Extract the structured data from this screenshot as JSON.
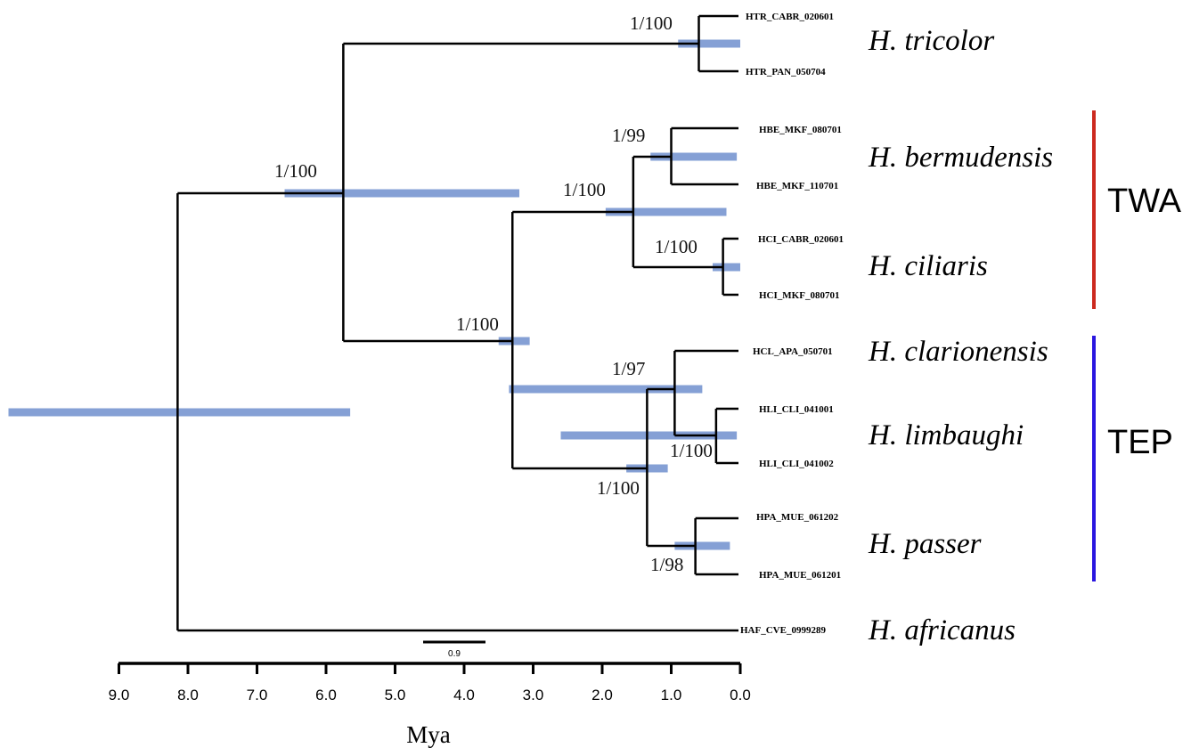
{
  "tips": [
    {
      "id": "t_htr1",
      "label": "HTR_CABR_020601"
    },
    {
      "id": "t_htr2",
      "label": "HTR_PAN_050704"
    },
    {
      "id": "t_hbe1",
      "label": "HBE_MKF_080701"
    },
    {
      "id": "t_hbe2",
      "label": "HBE_MKF_110701"
    },
    {
      "id": "t_hci1",
      "label": "HCI_CABR_020601"
    },
    {
      "id": "t_hci2",
      "label": "HCI_MKF_080701"
    },
    {
      "id": "t_hcl1",
      "label": "HCL_APA_050701"
    },
    {
      "id": "t_hli1",
      "label": "HLI_CLI_041001"
    },
    {
      "id": "t_hli2",
      "label": "HLI_CLI_041002"
    },
    {
      "id": "t_hpa1",
      "label": "HPA_MUE_061202"
    },
    {
      "id": "t_hpa2",
      "label": "HPA_MUE_061201"
    },
    {
      "id": "t_haf1",
      "label": "HAF_CVE_0999289"
    }
  ],
  "species": [
    {
      "id": "sp_tricolor",
      "label": "H. tricolor"
    },
    {
      "id": "sp_bermudensis",
      "label": "H. bermudensis"
    },
    {
      "id": "sp_ciliaris",
      "label": "H. ciliaris"
    },
    {
      "id": "sp_clarionensis",
      "label": "H. clarionensis"
    },
    {
      "id": "sp_limbaughi",
      "label": "H. limbaughi"
    },
    {
      "id": "sp_passer",
      "label": "H. passer"
    },
    {
      "id": "sp_africanus",
      "label": "H. africanus"
    }
  ],
  "nodes": [
    {
      "id": "n_root",
      "age": 8.15,
      "hpd": [
        10.6,
        5.65
      ],
      "support": ""
    },
    {
      "id": "n_trop",
      "age": 5.75,
      "hpd": [
        6.6,
        3.2
      ],
      "support": "1/100"
    },
    {
      "id": "n_tri",
      "age": 0.6,
      "hpd": [
        0.9,
        0.0
      ],
      "support": "1/100"
    },
    {
      "id": "n_atp",
      "age": 3.3,
      "hpd": [
        3.5,
        3.05
      ],
      "support": "1/100"
    },
    {
      "id": "n_twa",
      "age": 1.55,
      "hpd": [
        1.95,
        0.2
      ],
      "support": "1/100"
    },
    {
      "id": "n_ber",
      "age": 1.0,
      "hpd": [
        1.3,
        0.05
      ],
      "support": "1/99"
    },
    {
      "id": "n_cil",
      "age": 0.25,
      "hpd": [
        0.4,
        0.0
      ],
      "support": "1/100"
    },
    {
      "id": "n_tep",
      "age": 1.35,
      "hpd": [
        1.65,
        1.05
      ],
      "support": "1/100"
    },
    {
      "id": "n_cl",
      "age": 0.95,
      "hpd": [
        3.35,
        0.55
      ],
      "support": "1/97"
    },
    {
      "id": "n_lim",
      "age": 0.35,
      "hpd": [
        2.6,
        0.05
      ],
      "support": "1/100"
    },
    {
      "id": "n_pas",
      "age": 0.65,
      "hpd": [
        0.95,
        0.15
      ],
      "support": "1/98"
    }
  ],
  "regions": [
    {
      "id": "twa",
      "label": "TWA",
      "color": "#cc2a1f"
    },
    {
      "id": "tep",
      "label": "TEP",
      "color": "#2a16e0"
    }
  ],
  "axis": {
    "title": "Mya",
    "ticks": [
      "9.0",
      "8.0",
      "7.0",
      "6.0",
      "5.0",
      "4.0",
      "3.0",
      "2.0",
      "1.0",
      "0.0"
    ],
    "range": [
      9.0,
      0.0
    ]
  },
  "scale_bar": {
    "label": "0.9",
    "length": 0.9
  },
  "colors": {
    "hpd_bar": "#7f9bd3",
    "branch": "#000000"
  }
}
